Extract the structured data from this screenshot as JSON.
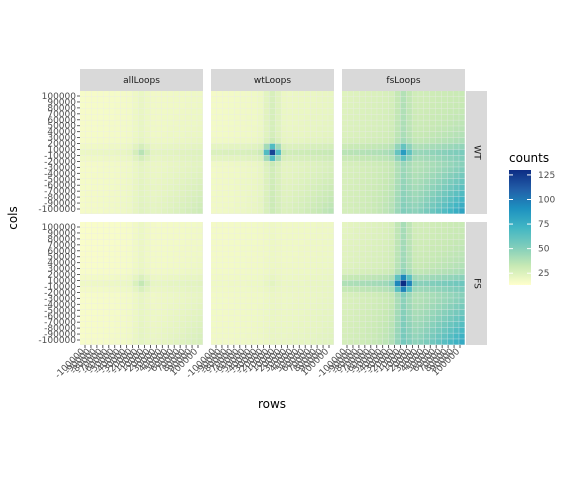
{
  "chart_data": {
    "type": "heatmap",
    "xlabel": "rows",
    "ylabel": "cols",
    "facet_columns": [
      "allLoops",
      "wtLoops",
      "fsLoops"
    ],
    "facet_rows": [
      "WT",
      "FS"
    ],
    "axis_ticks": [
      "-100000",
      "-90000",
      "-80000",
      "-70000",
      "-60000",
      "-50000",
      "-40000",
      "-30000",
      "-20000",
      "-10000",
      "10000",
      "20000",
      "30000",
      "40000",
      "50000",
      "60000",
      "70000",
      "80000",
      "90000",
      "100000"
    ],
    "grid_size": 21,
    "legend": {
      "title": "counts",
      "ticks": [
        25,
        50,
        75,
        100,
        125
      ],
      "range": [
        13,
        130
      ],
      "colors": [
        "#ffffcc",
        "#c7e9b4",
        "#7fcdbb",
        "#41b6c4",
        "#1d91c0",
        "#225ea8",
        "#0c2c84"
      ]
    },
    "panels": [
      {
        "row": "WT",
        "col": "allLoops",
        "base": 16,
        "xgrad": 3,
        "ygrad": 1,
        "diag": 10,
        "center": 12,
        "stripe": 3
      },
      {
        "row": "WT",
        "col": "wtLoops",
        "base": 17,
        "xgrad": 4,
        "ygrad": 1,
        "diag": 14,
        "center": 85,
        "stripe": 8
      },
      {
        "row": "WT",
        "col": "fsLoops",
        "base": 24,
        "xgrad": 8,
        "ygrad": 4,
        "diag": 45,
        "center": 33,
        "stripe": 10
      },
      {
        "row": "FS",
        "col": "allLoops",
        "base": 15,
        "xgrad": 3,
        "ygrad": 1,
        "diag": 8,
        "center": 10,
        "stripe": 3
      },
      {
        "row": "FS",
        "col": "wtLoops",
        "base": 17,
        "xgrad": 2,
        "ygrad": 1,
        "diag": 4,
        "center": 2,
        "stripe": 1
      },
      {
        "row": "FS",
        "col": "fsLoops",
        "base": 22,
        "xgrad": 10,
        "ygrad": 6,
        "diag": 40,
        "center": 105,
        "stripe": 14
      }
    ]
  }
}
